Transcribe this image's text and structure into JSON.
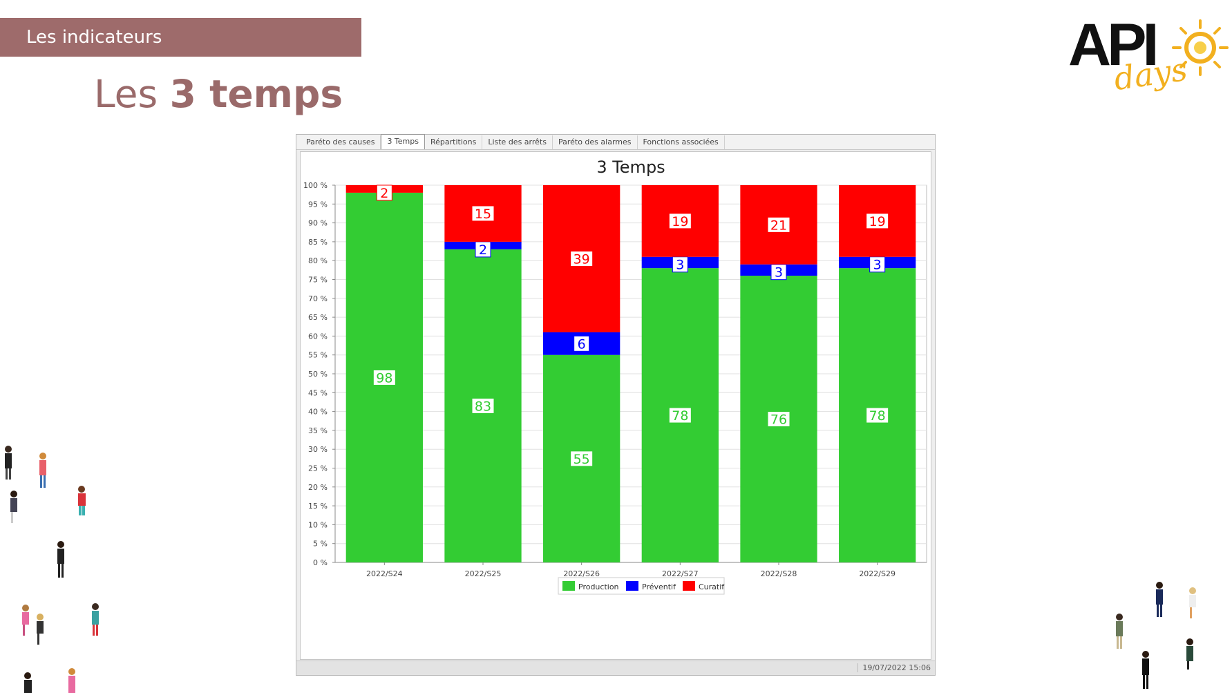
{
  "slide": {
    "header_label": "Les indicateurs",
    "title_regular": "Les ",
    "title_bold": "3 temps"
  },
  "logo": {
    "text_main": "API",
    "text_sub": "days"
  },
  "app": {
    "tabs": [
      {
        "label": "Paréto des causes",
        "active": false
      },
      {
        "label": "3 Temps",
        "active": true
      },
      {
        "label": "Répartitions",
        "active": false
      },
      {
        "label": "Liste des arrêts",
        "active": false
      },
      {
        "label": "Paréto des alarmes",
        "active": false
      },
      {
        "label": "Fonctions associées",
        "active": false
      }
    ],
    "status_time": "19/07/2022 15:06"
  },
  "colors": {
    "header_band": "#9e6b6b",
    "title": "#9a6a6a",
    "production": "#33cc33",
    "preventif": "#0000ff",
    "curatif": "#ff0000"
  },
  "chart_data": {
    "type": "bar",
    "stacked": true,
    "title": "3 Temps",
    "categories": [
      "2022/S24",
      "2022/S25",
      "2022/S26",
      "2022/S27",
      "2022/S28",
      "2022/S29"
    ],
    "series": [
      {
        "name": "Production",
        "color": "#33cc33",
        "values": [
          98,
          83,
          55,
          78,
          76,
          78
        ],
        "labels": [
          "98",
          "83",
          "55",
          "78",
          "76",
          "78"
        ]
      },
      {
        "name": "Préventif",
        "color": "#0000ff",
        "values": [
          0,
          2,
          6,
          3,
          3,
          3
        ],
        "labels": [
          "",
          "2",
          "6",
          "3",
          "3",
          "3"
        ]
      },
      {
        "name": "Curatif",
        "color": "#ff0000",
        "values": [
          2,
          15,
          39,
          19,
          21,
          19
        ],
        "labels": [
          "2",
          "15",
          "39",
          "19",
          "21",
          "19"
        ]
      }
    ],
    "ylim": [
      0,
      100
    ],
    "ytick_labels": [
      "0 %",
      "5 %",
      "10 %",
      "15 %",
      "20 %",
      "25 %",
      "30 %",
      "35 %",
      "40 %",
      "45 %",
      "50 %",
      "55 %",
      "60 %",
      "65 %",
      "70 %",
      "75 %",
      "80 %",
      "85 %",
      "90 %",
      "95 %",
      "100 %"
    ],
    "legend_position": "bottom-center",
    "grid": true
  }
}
